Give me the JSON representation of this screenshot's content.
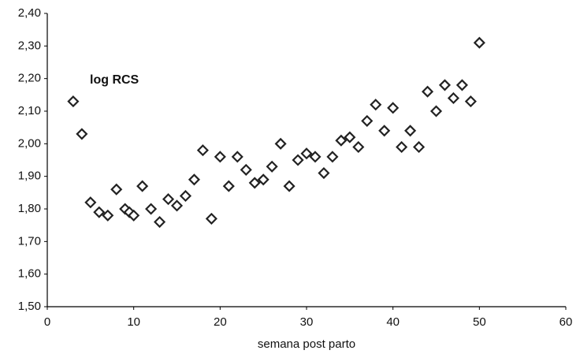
{
  "chart_data": {
    "type": "scatter",
    "x_label": "semana post parto",
    "annotation": "log RCS",
    "color": "#222222",
    "x": [
      3,
      4,
      5,
      6,
      7,
      8,
      9,
      9.5,
      10,
      11,
      12,
      13,
      14,
      15,
      16,
      17,
      18,
      19,
      20,
      21,
      22,
      23,
      24,
      25,
      26,
      27,
      28,
      29,
      30,
      31,
      32,
      33,
      34,
      35,
      36,
      37,
      38,
      39,
      40,
      41,
      42,
      43,
      44,
      45,
      46,
      47,
      48,
      49,
      50
    ],
    "values": [
      2.13,
      2.03,
      1.82,
      1.79,
      1.78,
      1.86,
      1.8,
      1.79,
      1.78,
      1.87,
      1.8,
      1.76,
      1.83,
      1.81,
      1.84,
      1.89,
      1.98,
      1.77,
      1.96,
      1.87,
      1.96,
      1.92,
      1.88,
      1.89,
      1.93,
      2.0,
      1.87,
      1.95,
      1.97,
      1.96,
      1.91,
      1.96,
      2.01,
      2.02,
      1.99,
      2.07,
      2.12,
      2.04,
      2.11,
      1.99,
      2.04,
      1.99,
      2.16,
      2.1,
      2.18,
      2.14,
      2.18,
      2.13,
      2.31
    ],
    "xlim": [
      0,
      60
    ],
    "xticks": [
      0,
      10,
      20,
      30,
      40,
      50,
      60
    ],
    "ylim": [
      1.5,
      2.4
    ],
    "yticks": [
      {
        "value": 1.5,
        "label": "1,50"
      },
      {
        "value": 1.6,
        "label": "1,60"
      },
      {
        "value": 1.7,
        "label": "1,70"
      },
      {
        "value": 1.8,
        "label": "1,80"
      },
      {
        "value": 1.9,
        "label": "1,90"
      },
      {
        "value": 2.0,
        "label": "2,00"
      },
      {
        "value": 2.1,
        "label": "2,10"
      },
      {
        "value": 2.2,
        "label": "2,20"
      },
      {
        "value": 2.3,
        "label": "2,30"
      },
      {
        "value": 2.4,
        "label": "2,40"
      }
    ],
    "grid": false
  }
}
